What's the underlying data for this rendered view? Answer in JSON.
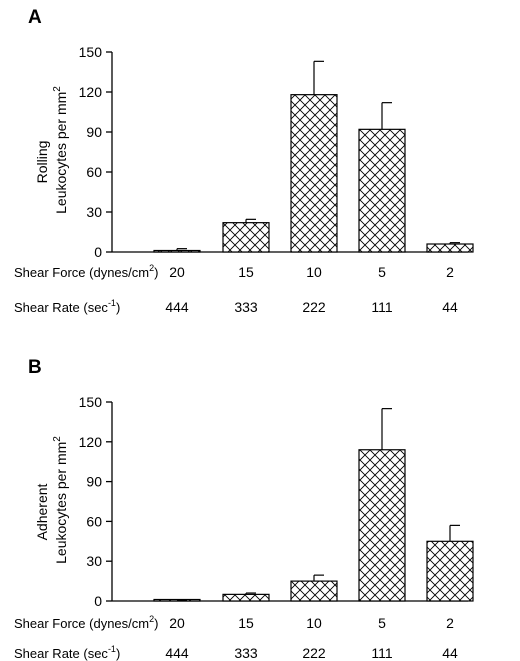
{
  "shear_force_label": "Shear Force (dynes/cm",
  "shear_force_sup": "2",
  "shear_force_close": ")",
  "shear_rate_label": "Shear Rate (sec",
  "shear_rate_sup": "-1",
  "shear_rate_close": ")",
  "shear_force_values": [
    "20",
    "15",
    "10",
    "5",
    "2"
  ],
  "shear_rate_values": [
    "444",
    "333",
    "222",
    "111",
    "44"
  ],
  "chart_data": [
    {
      "type": "bar",
      "panel": "A",
      "ylabel_line1": "Rolling",
      "ylabel_line2": "Leukocytes per mm",
      "ylabel_sup": "2",
      "categories": [
        "20",
        "15",
        "10",
        "5",
        "2"
      ],
      "values": [
        1,
        22,
        118,
        92,
        6
      ],
      "errors": [
        1.5,
        2.5,
        25,
        20,
        1
      ],
      "ylim": [
        0,
        150
      ],
      "yticks": [
        0,
        30,
        60,
        90,
        120,
        150
      ],
      "grid": false
    },
    {
      "type": "bar",
      "panel": "B",
      "ylabel_line1": "Adherent",
      "ylabel_line2": "Leukocytes per mm",
      "ylabel_sup": "2",
      "categories": [
        "20",
        "15",
        "10",
        "5",
        "2"
      ],
      "values": [
        0,
        5,
        15,
        114,
        45
      ],
      "errors": [
        0.8,
        1,
        4.5,
        31,
        12
      ],
      "ylim": [
        0,
        150
      ],
      "yticks": [
        0,
        30,
        60,
        90,
        120,
        150
      ],
      "grid": false
    }
  ]
}
